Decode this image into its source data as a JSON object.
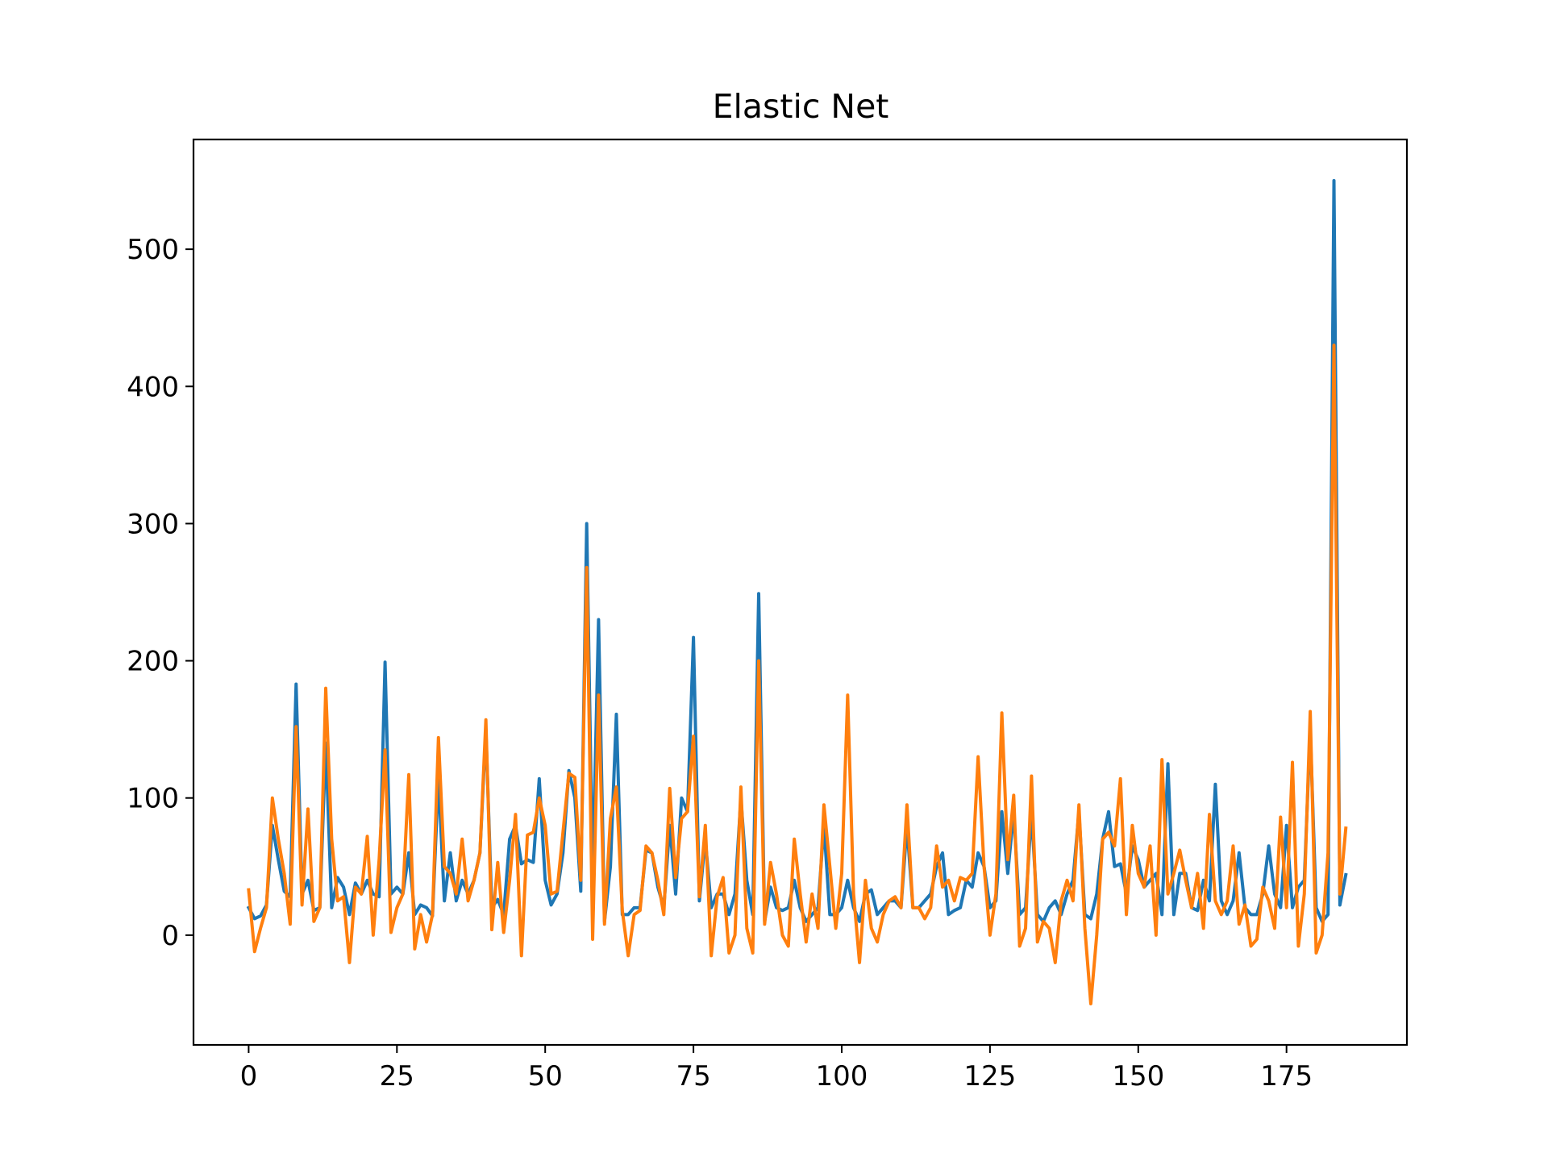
{
  "chart_data": {
    "type": "line",
    "title": "Elastic Net",
    "xlabel": "",
    "ylabel": "",
    "xlim": [
      -9.3,
      195.3
    ],
    "ylim": [
      -80,
      580
    ],
    "xticks": [
      0,
      25,
      50,
      75,
      100,
      125,
      150,
      175
    ],
    "yticks": [
      0,
      100,
      200,
      300,
      400,
      500
    ],
    "xtick_labels": [
      "0",
      "25",
      "50",
      "75",
      "100",
      "125",
      "150",
      "175"
    ],
    "ytick_labels": [
      "0",
      "100",
      "200",
      "300",
      "400",
      "500"
    ],
    "grid": false,
    "legend": "none",
    "series": [
      {
        "color": "#1f77b4",
        "values": [
          20,
          12,
          14,
          22,
          80,
          55,
          32,
          28,
          183,
          30,
          40,
          18,
          20,
          140,
          20,
          42,
          35,
          15,
          38,
          30,
          40,
          30,
          28,
          199,
          30,
          35,
          30,
          60,
          15,
          22,
          20,
          14,
          115,
          25,
          60,
          25,
          40,
          30,
          40,
          60,
          150,
          20,
          26,
          15,
          70,
          80,
          52,
          55,
          53,
          114,
          40,
          22,
          30,
          60,
          120,
          100,
          32,
          300,
          40,
          230,
          10,
          50,
          161,
          15,
          15,
          20,
          20,
          62,
          60,
          35,
          20,
          80,
          30,
          100,
          90,
          217,
          25,
          70,
          20,
          30,
          30,
          15,
          30,
          100,
          40,
          15,
          249,
          10,
          35,
          20,
          18,
          20,
          40,
          20,
          10,
          15,
          20,
          80,
          15,
          15,
          20,
          40,
          20,
          10,
          30,
          33,
          15,
          20,
          25,
          25,
          20,
          80,
          20,
          20,
          25,
          30,
          50,
          60,
          15,
          18,
          20,
          40,
          35,
          60,
          50,
          20,
          25,
          90,
          45,
          90,
          15,
          20,
          90,
          15,
          10,
          20,
          25,
          15,
          30,
          40,
          90,
          15,
          12,
          30,
          70,
          90,
          50,
          52,
          30,
          65,
          55,
          35,
          40,
          45,
          15,
          125,
          15,
          45,
          45,
          20,
          18,
          40,
          25,
          110,
          25,
          15,
          25,
          60,
          20,
          15,
          15,
          30,
          65,
          30,
          20,
          80,
          20,
          35,
          40,
          150,
          20,
          10,
          15,
          550,
          22,
          44
        ]
      },
      {
        "color": "#ff7f0e",
        "values": [
          33,
          -12,
          5,
          20,
          100,
          70,
          45,
          8,
          152,
          22,
          92,
          10,
          20,
          180,
          70,
          25,
          28,
          -20,
          35,
          30,
          72,
          0,
          55,
          135,
          2,
          20,
          30,
          117,
          -10,
          15,
          -5,
          15,
          144,
          50,
          45,
          30,
          70,
          25,
          40,
          60,
          157,
          4,
          53,
          2,
          40,
          88,
          -15,
          73,
          75,
          100,
          80,
          30,
          32,
          75,
          118,
          115,
          40,
          268,
          -3,
          175,
          8,
          85,
          108,
          18,
          -15,
          15,
          18,
          65,
          60,
          40,
          15,
          107,
          42,
          85,
          90,
          145,
          28,
          80,
          -15,
          28,
          42,
          -13,
          0,
          108,
          5,
          -13,
          200,
          8,
          53,
          30,
          0,
          -8,
          70,
          30,
          -5,
          30,
          5,
          95,
          50,
          5,
          45,
          175,
          30,
          -20,
          40,
          5,
          -5,
          15,
          25,
          28,
          20,
          95,
          20,
          20,
          12,
          20,
          65,
          35,
          40,
          25,
          42,
          40,
          45,
          130,
          50,
          0,
          30,
          162,
          55,
          102,
          -8,
          5,
          116,
          -5,
          10,
          5,
          -20,
          25,
          40,
          25,
          95,
          5,
          -50,
          0,
          70,
          75,
          65,
          114,
          15,
          80,
          45,
          35,
          65,
          0,
          128,
          30,
          45,
          62,
          40,
          20,
          45,
          5,
          88,
          25,
          15,
          25,
          65,
          8,
          22,
          -8,
          -3,
          35,
          25,
          5,
          86,
          20,
          126,
          -8,
          30,
          163,
          -13,
          0,
          60,
          430,
          30,
          78
        ]
      }
    ]
  }
}
